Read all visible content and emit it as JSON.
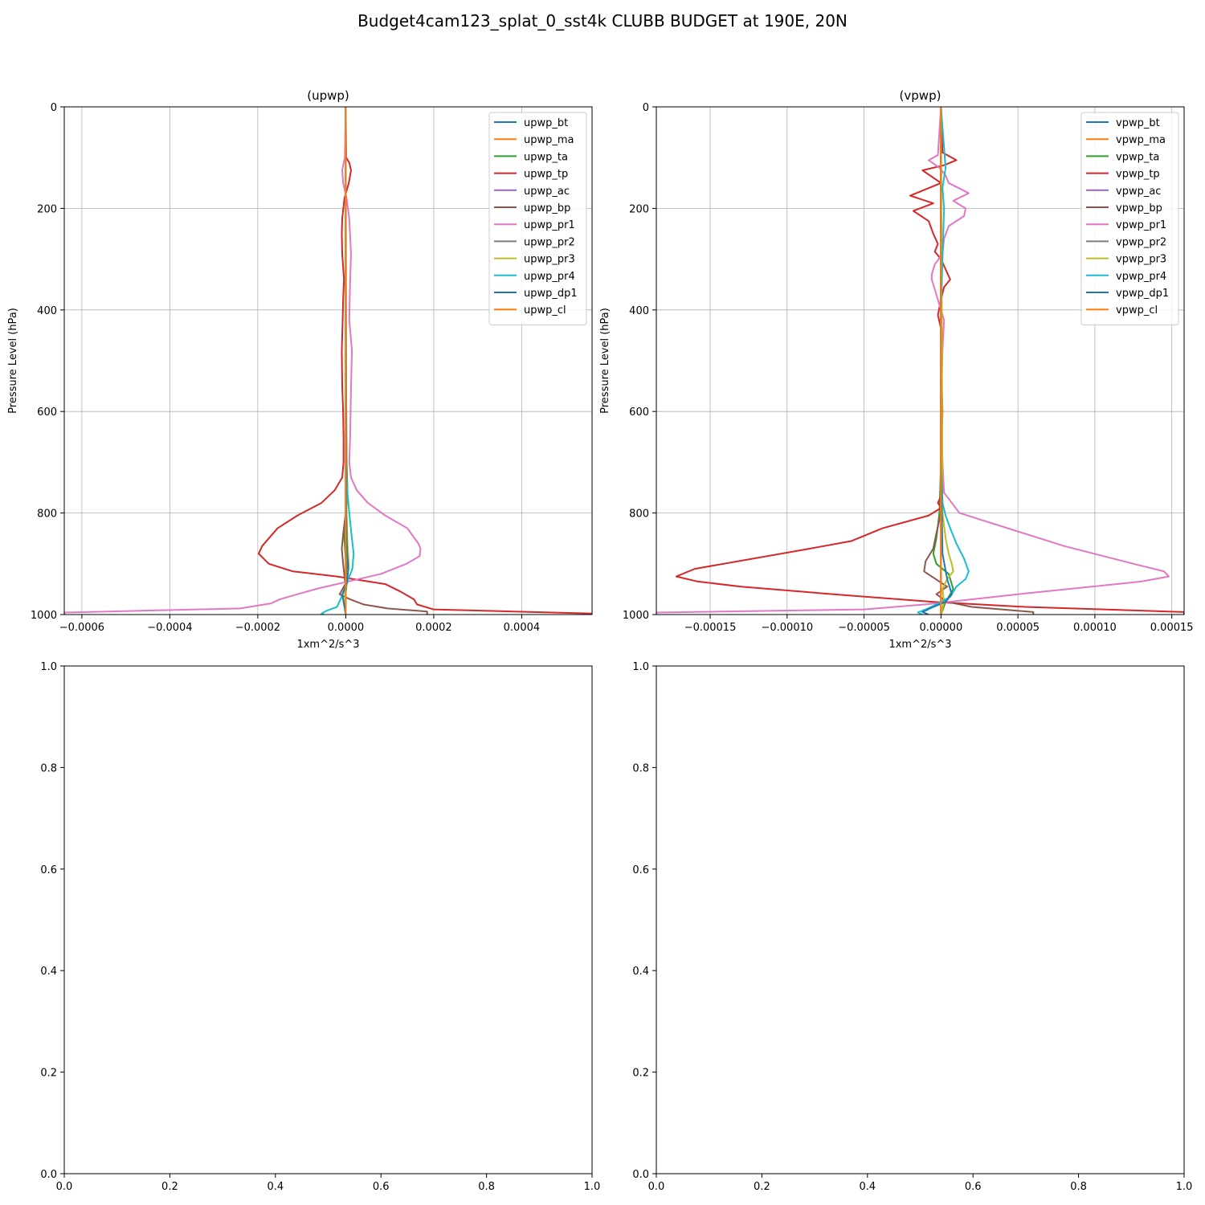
{
  "figure": {
    "title": "Budget4cam123_splat_0_sst4k CLUBB BUDGET at 190E, 20N"
  },
  "chart_data": [
    {
      "type": "line",
      "title": "(upwp)",
      "xlabel": "1xm^2/s^3",
      "ylabel": "Pressure Level (hPa)",
      "xlim": [
        -0.00064,
        0.00056
      ],
      "ylim": [
        1000,
        0
      ],
      "x_ticks": [
        -0.0006,
        -0.0004,
        -0.0002,
        0.0,
        0.0002,
        0.0004
      ],
      "x_tick_labels": [
        "−0.0006",
        "−0.0004",
        "−0.0002",
        "0.0000",
        "0.0002",
        "0.0004"
      ],
      "y_ticks": [
        0,
        200,
        400,
        600,
        800,
        1000
      ],
      "y_tick_labels": [
        "0",
        "200",
        "400",
        "600",
        "800",
        "1000"
      ],
      "grid": true,
      "legend_position": "upper-right",
      "series": [
        {
          "name": "upwp_bt",
          "color": "#1f77b4",
          "p": [
            0,
            700,
            900,
            1000
          ],
          "x": [
            0,
            0,
            0,
            0
          ]
        },
        {
          "name": "upwp_ma",
          "color": "#ff7f0e",
          "p": [
            0,
            700,
            900,
            1000
          ],
          "x": [
            0,
            0,
            0,
            0
          ]
        },
        {
          "name": "upwp_ta",
          "color": "#2ca02c",
          "p": [
            0,
            400,
            700,
            760,
            800,
            840,
            880,
            920,
            950,
            980,
            1000
          ],
          "x": [
            0,
            0,
            2e-06,
            4e-06,
            1e-06,
            -4e-06,
            -1e-06,
            4e-06,
            1e-06,
            -3e-06,
            0
          ]
        },
        {
          "name": "upwp_tp",
          "color": "#d62728",
          "p": [
            0,
            100,
            110,
            125,
            150,
            180,
            220,
            250,
            290,
            340,
            380,
            420,
            480,
            550,
            600,
            650,
            700,
            730,
            755,
            780,
            805,
            830,
            865,
            880,
            900,
            915,
            925,
            940,
            955,
            970,
            980,
            990,
            998,
            1000
          ],
          "x": [
            0,
            1e-06,
            8e-06,
            1.2e-05,
            7e-06,
            -3e-06,
            -8e-06,
            -9e-06,
            -8e-06,
            -4e-06,
            -6e-06,
            -7e-06,
            -9e-06,
            -8e-06,
            -6e-06,
            -5e-06,
            -5e-06,
            -8e-06,
            -2.5e-05,
            -5.5e-05,
            -0.00011,
            -0.000155,
            -0.00019,
            -0.000198,
            -0.000175,
            -0.00012,
            -2e-05,
            9e-05,
            0.000125,
            0.000155,
            0.000162,
            0.0002,
            0.00056,
            0.00056
          ]
        },
        {
          "name": "upwp_ac",
          "color": "#9467bd",
          "p": [
            0,
            700,
            1000
          ],
          "x": [
            0,
            0,
            0
          ]
        },
        {
          "name": "upwp_bp",
          "color": "#8c564b",
          "p": [
            0,
            800,
            835,
            870,
            900,
            940,
            960,
            970,
            980,
            988,
            994,
            1000
          ],
          "x": [
            0,
            0,
            -5e-06,
            -9e-06,
            -6e-06,
            -1e-06,
            -1.4e-05,
            1e-05,
            4e-05,
            9.5e-05,
            0.000185,
            0.000185
          ]
        },
        {
          "name": "upwp_pr1",
          "color": "#e377c2",
          "p": [
            0,
            100,
            115,
            125,
            150,
            180,
            220,
            290,
            340,
            420,
            480,
            550,
            650,
            700,
            730,
            755,
            780,
            805,
            830,
            860,
            870,
            885,
            900,
            920,
            935,
            948,
            960,
            970,
            978,
            988,
            996,
            1000
          ],
          "x": [
            0,
            -2e-06,
            -6e-06,
            -8e-06,
            -6e-06,
            2e-06,
            8e-06,
            1.2e-05,
            1e-05,
            8e-06,
            1.4e-05,
            1.2e-05,
            1e-05,
            8e-06,
            1.2e-05,
            2.5e-05,
            5e-05,
            9e-05,
            0.00014,
            0.000165,
            0.00017,
            0.000168,
            0.000138,
            8e-05,
            5e-06,
            -6e-05,
            -0.00011,
            -0.00015,
            -0.00017,
            -0.00024,
            -0.00064,
            -0.00064
          ]
        },
        {
          "name": "upwp_pr2",
          "color": "#7f7f7f",
          "p": [
            0,
            700,
            1000
          ],
          "x": [
            0,
            0,
            0
          ]
        },
        {
          "name": "upwp_pr3",
          "color": "#bcbd22",
          "p": [
            0,
            750,
            800,
            860,
            900,
            930,
            960,
            1000
          ],
          "x": [
            0,
            1e-06,
            2e-06,
            4e-06,
            7e-06,
            3e-06,
            -2e-06,
            0
          ]
        },
        {
          "name": "upwp_pr4",
          "color": "#17becf",
          "p": [
            0,
            700,
            750,
            800,
            850,
            880,
            910,
            930,
            950,
            970,
            985,
            993,
            998,
            1000
          ],
          "x": [
            0,
            0,
            3e-06,
            8e-06,
            1.4e-05,
            1.8e-05,
            1.5e-05,
            6e-06,
            -2e-06,
            -1.2e-05,
            -2e-05,
            -4.5e-05,
            -5.5e-05,
            -5e-05
          ]
        },
        {
          "name": "upwp_dp1",
          "color": "#1f77b4",
          "p": [
            0,
            800,
            880,
            910,
            940,
            960,
            975,
            990,
            1000
          ],
          "x": [
            0,
            1e-06,
            3e-06,
            6e-06,
            2e-06,
            -8e-06,
            -5e-06,
            -2e-06,
            0
          ]
        },
        {
          "name": "upwp_cl",
          "color": "#ff7f0e",
          "p": [
            0,
            1000
          ],
          "x": [
            0,
            0
          ]
        }
      ]
    },
    {
      "type": "line",
      "title": "(vpwp)",
      "xlabel": "1xm^2/s^3",
      "ylabel": "Pressure Level (hPa)",
      "xlim": [
        -0.000185,
        0.000158
      ],
      "ylim": [
        1000,
        0
      ],
      "x_ticks": [
        -0.00015,
        -0.0001,
        -5e-05,
        0.0,
        5e-05,
        0.0001,
        0.00015
      ],
      "x_tick_labels": [
        "−0.00015",
        "−0.00010",
        "−0.00005",
        "0.00000",
        "0.00005",
        "0.00010",
        "0.00015"
      ],
      "y_ticks": [
        0,
        200,
        400,
        600,
        800,
        1000
      ],
      "y_tick_labels": [
        "0",
        "200",
        "400",
        "600",
        "800",
        "1000"
      ],
      "grid": true,
      "legend_position": "upper-right",
      "series": [
        {
          "name": "vpwp_bt",
          "color": "#1f77b4",
          "p": [
            0,
            700,
            1000
          ],
          "x": [
            0,
            0,
            0
          ]
        },
        {
          "name": "vpwp_ma",
          "color": "#ff7f0e",
          "p": [
            0,
            700,
            1000
          ],
          "x": [
            0,
            0,
            0
          ]
        },
        {
          "name": "vpwp_ta",
          "color": "#2ca02c",
          "p": [
            0,
            700,
            800,
            850,
            880,
            900,
            920,
            950,
            975,
            1000
          ],
          "x": [
            0,
            0,
            -1e-06,
            -3e-06,
            -5e-06,
            -3e-06,
            5e-06,
            8e-06,
            3e-06,
            0
          ]
        },
        {
          "name": "vpwp_tp",
          "color": "#d62728",
          "p": [
            0,
            90,
            105,
            115,
            125,
            150,
            175,
            190,
            205,
            225,
            250,
            270,
            285,
            300,
            320,
            340,
            355,
            380,
            410,
            450,
            500,
            600,
            700,
            760,
            780,
            790,
            805,
            830,
            855,
            870,
            910,
            925,
            935,
            945,
            960,
            975,
            985,
            995,
            1000
          ],
          "x": [
            0,
            1e-06,
            1e-05,
            2e-06,
            -1.2e-05,
            0,
            -2e-05,
            -5e-06,
            -1.8e-05,
            -8e-06,
            -5e-06,
            -2e-06,
            -4e-06,
            0,
            3e-06,
            6e-06,
            2e-06,
            0,
            -2e-06,
            1e-06,
            0,
            1e-06,
            0,
            1e-06,
            -2e-06,
            0,
            -8e-06,
            -3.8e-05,
            -5.8e-05,
            -8.5e-05,
            -0.00016,
            -0.000172,
            -0.000158,
            -0.00013,
            -7e-05,
            -5e-06,
            5.5e-05,
            0.000158,
            0.000158
          ]
        },
        {
          "name": "vpwp_ac",
          "color": "#9467bd",
          "p": [
            0,
            700,
            1000
          ],
          "x": [
            0,
            0,
            0
          ]
        },
        {
          "name": "vpwp_bp",
          "color": "#8c564b",
          "p": [
            0,
            800,
            840,
            870,
            895,
            915,
            935,
            945,
            960,
            975,
            985,
            995,
            1000
          ],
          "x": [
            0,
            0,
            -3e-06,
            -5e-06,
            -1e-05,
            -1.1e-05,
            -1e-06,
            4e-06,
            -3e-06,
            4e-06,
            2e-05,
            6e-05,
            6e-05
          ]
        },
        {
          "name": "vpwp_pr1",
          "color": "#e377c2",
          "p": [
            0,
            95,
            105,
            120,
            135,
            150,
            170,
            185,
            200,
            215,
            235,
            260,
            290,
            310,
            330,
            340,
            360,
            380,
            420,
            480,
            600,
            700,
            760,
            800,
            865,
            900,
            915,
            925,
            935,
            960,
            980,
            990,
            996,
            1000
          ],
          "x": [
            0,
            -2e-06,
            -8e-06,
            -1e-06,
            3e-06,
            5e-06,
            1.8e-05,
            8e-06,
            1.6e-05,
            1.5e-05,
            5e-06,
            2e-06,
            1e-06,
            -4e-06,
            -6e-06,
            -6e-06,
            -4e-06,
            -2e-06,
            2e-06,
            1e-06,
            0,
            1e-06,
            2e-06,
            1.2e-05,
            8e-05,
            0.000125,
            0.000145,
            0.000148,
            0.00013,
            5e-05,
            -1e-05,
            -5e-05,
            -0.000185,
            -0.000185
          ]
        },
        {
          "name": "vpwp_pr2",
          "color": "#7f7f7f",
          "p": [
            0,
            700,
            1000
          ],
          "x": [
            0,
            0,
            0
          ]
        },
        {
          "name": "vpwp_pr3",
          "color": "#bcbd22",
          "p": [
            0,
            800,
            850,
            880,
            900,
            915,
            930,
            950,
            975,
            1000
          ],
          "x": [
            0,
            1e-06,
            3e-06,
            5e-06,
            7e-06,
            8e-06,
            4e-06,
            1e-06,
            2e-06,
            0
          ]
        },
        {
          "name": "vpwp_pr4",
          "color": "#17becf",
          "p": [
            0,
            120,
            160,
            200,
            300,
            400,
            600,
            700,
            780,
            805,
            830,
            860,
            890,
            915,
            930,
            945,
            965,
            980,
            990,
            996,
            1000
          ],
          "x": [
            0,
            3e-06,
            1e-06,
            2e-06,
            1e-06,
            0,
            0,
            0,
            1e-06,
            3e-06,
            6e-06,
            1e-05,
            1.5e-05,
            1.8e-05,
            1.6e-05,
            1e-05,
            6e-06,
            -3e-06,
            -1e-05,
            -1.5e-05,
            -1.2e-05
          ]
        },
        {
          "name": "vpwp_dp1",
          "color": "#1f77b4",
          "p": [
            0,
            700,
            880,
            930,
            960,
            975,
            985,
            995,
            1000
          ],
          "x": [
            0,
            0,
            1e-06,
            4e-06,
            7e-06,
            3e-06,
            -5e-06,
            -1.2e-05,
            -8e-06
          ]
        },
        {
          "name": "vpwp_cl",
          "color": "#ff7f0e",
          "p": [
            0,
            1000
          ],
          "x": [
            0,
            0
          ]
        }
      ]
    },
    {
      "type": "line",
      "title": "",
      "xlim": [
        0,
        1
      ],
      "ylim": [
        0,
        1
      ],
      "x_ticks": [
        0,
        0.2,
        0.4,
        0.6,
        0.8,
        1.0
      ],
      "x_tick_labels": [
        "0.0",
        "0.2",
        "0.4",
        "0.6",
        "0.8",
        "1.0"
      ],
      "y_ticks": [
        0,
        0.2,
        0.4,
        0.6,
        0.8,
        1.0
      ],
      "y_tick_labels": [
        "0.0",
        "0.2",
        "0.4",
        "0.6",
        "0.8",
        "1.0"
      ],
      "grid": false,
      "series": []
    },
    {
      "type": "line",
      "title": "",
      "xlim": [
        0,
        1
      ],
      "ylim": [
        0,
        1
      ],
      "x_ticks": [
        0,
        0.2,
        0.4,
        0.6,
        0.8,
        1.0
      ],
      "x_tick_labels": [
        "0.0",
        "0.2",
        "0.4",
        "0.6",
        "0.8",
        "1.0"
      ],
      "y_ticks": [
        0,
        0.2,
        0.4,
        0.6,
        0.8,
        1.0
      ],
      "y_tick_labels": [
        "0.0",
        "0.2",
        "0.4",
        "0.6",
        "0.8",
        "1.0"
      ],
      "grid": false,
      "series": []
    }
  ]
}
